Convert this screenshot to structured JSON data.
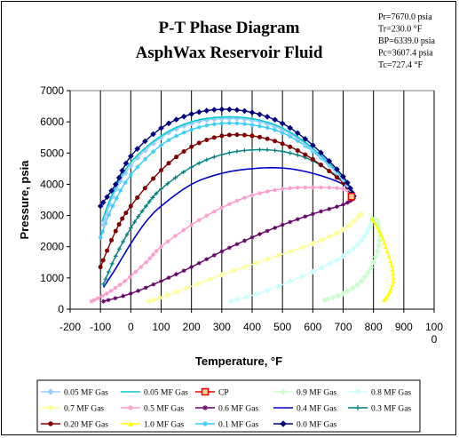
{
  "chart_data": {
    "type": "line",
    "title": "P-T Phase Diagram",
    "subtitle": "AsphWax Reservoir Fluid",
    "xlabel": "Temperature, °F",
    "ylabel": "Pressure, psia",
    "xlim": [
      -200,
      1000
    ],
    "ylim": [
      0,
      7000
    ],
    "x_ticks": [
      -200,
      -100,
      0,
      100,
      200,
      300,
      400,
      500,
      600,
      700,
      800,
      900,
      1000
    ],
    "x_tick_labels": [
      "-200",
      "-100",
      "0",
      "100",
      "200",
      "300",
      "400",
      "500",
      "600",
      "700",
      "800",
      "900",
      "100\n0"
    ],
    "y_ticks": [
      0,
      1000,
      2000,
      3000,
      4000,
      5000,
      6000,
      7000
    ],
    "grid": "vertical",
    "legend_position": "bottom",
    "info_lines": [
      "Pr=7670.0 psia",
      "Tr=230.0 °F",
      "BP=6339.0 psia",
      "Pc=3607.4 psia",
      "Tc=727.4 °F"
    ],
    "series": [
      {
        "name": "0.05 MF Gas",
        "color": "#99ccff",
        "marker": "diamond",
        "points": [
          [
            -90,
            2700
          ],
          [
            -60,
            3600
          ],
          [
            0,
            4600
          ],
          [
            100,
            5500
          ],
          [
            200,
            5950
          ],
          [
            300,
            6100
          ],
          [
            400,
            6050
          ],
          [
            500,
            5750
          ],
          [
            600,
            5100
          ],
          [
            700,
            4150
          ],
          [
            735,
            3620
          ]
        ]
      },
      {
        "name": "0.05 MF Gas",
        "color": "#00cccc",
        "marker": "none",
        "points": [
          [
            -95,
            2800
          ],
          [
            -60,
            3700
          ],
          [
            0,
            4700
          ],
          [
            100,
            5550
          ],
          [
            200,
            6000
          ],
          [
            300,
            6150
          ],
          [
            400,
            6100
          ],
          [
            500,
            5800
          ],
          [
            600,
            5150
          ],
          [
            700,
            4200
          ],
          [
            735,
            3620
          ]
        ]
      },
      {
        "name": "CP",
        "color": "#ff0000",
        "marker": "square",
        "points": [
          [
            727.4,
            3607.4
          ]
        ]
      },
      {
        "name": "0.9 MF Gas",
        "color": "#ccffcc",
        "marker": "diamond",
        "points": [
          [
            640,
            300
          ],
          [
            700,
            500
          ],
          [
            760,
            900
          ],
          [
            800,
            1500
          ],
          [
            820,
            2200
          ],
          [
            815,
            2700
          ],
          [
            805,
            2900
          ]
        ]
      },
      {
        "name": "0.8 MF Gas",
        "color": "#ccffff",
        "marker": "diamond",
        "points": [
          [
            330,
            250
          ],
          [
            450,
            600
          ],
          [
            600,
            1200
          ],
          [
            700,
            1700
          ],
          [
            760,
            2200
          ],
          [
            790,
            2700
          ],
          [
            795,
            2900
          ]
        ]
      },
      {
        "name": "0.7 MF Gas",
        "color": "#ffff99",
        "marker": "diamond",
        "points": [
          [
            60,
            250
          ],
          [
            150,
            550
          ],
          [
            300,
            1100
          ],
          [
            450,
            1600
          ],
          [
            600,
            2100
          ],
          [
            700,
            2550
          ],
          [
            760,
            3050
          ]
        ]
      },
      {
        "name": "0.5 MF Gas",
        "color": "#ff99cc",
        "marker": "star",
        "points": [
          [
            -130,
            250
          ],
          [
            -80,
            500
          ],
          [
            -20,
            900
          ],
          [
            50,
            1500
          ],
          [
            100,
            2000
          ],
          [
            200,
            2700
          ],
          [
            300,
            3250
          ],
          [
            400,
            3650
          ],
          [
            500,
            3850
          ],
          [
            600,
            3900
          ],
          [
            700,
            3850
          ],
          [
            735,
            3620
          ]
        ]
      },
      {
        "name": "0.6 MF Gas",
        "color": "#660066",
        "marker": "star",
        "points": [
          [
            -90,
            250
          ],
          [
            0,
            500
          ],
          [
            100,
            900
          ],
          [
            200,
            1350
          ],
          [
            300,
            1850
          ],
          [
            400,
            2300
          ],
          [
            500,
            2700
          ],
          [
            600,
            3050
          ],
          [
            700,
            3350
          ],
          [
            735,
            3550
          ]
        ]
      },
      {
        "name": "0.4 MF Gas",
        "color": "#0000cc",
        "marker": "none",
        "points": [
          [
            -90,
            700
          ],
          [
            -50,
            1300
          ],
          [
            0,
            2100
          ],
          [
            50,
            2800
          ],
          [
            100,
            3300
          ],
          [
            200,
            4000
          ],
          [
            300,
            4350
          ],
          [
            400,
            4500
          ],
          [
            500,
            4520
          ],
          [
            600,
            4350
          ],
          [
            700,
            4000
          ],
          [
            735,
            3620
          ]
        ]
      },
      {
        "name": "0.3 MF Gas",
        "color": "#008080",
        "marker": "plus",
        "points": [
          [
            -90,
            800
          ],
          [
            -50,
            1700
          ],
          [
            0,
            2600
          ],
          [
            50,
            3300
          ],
          [
            100,
            3850
          ],
          [
            200,
            4550
          ],
          [
            300,
            4950
          ],
          [
            400,
            5100
          ],
          [
            500,
            5050
          ],
          [
            600,
            4750
          ],
          [
            700,
            4100
          ],
          [
            735,
            3620
          ]
        ]
      },
      {
        "name": "0.20 MF Gas",
        "color": "#800000",
        "marker": "circle",
        "points": [
          [
            -100,
            1350
          ],
          [
            -50,
            2500
          ],
          [
            0,
            3300
          ],
          [
            100,
            4450
          ],
          [
            200,
            5200
          ],
          [
            300,
            5550
          ],
          [
            400,
            5550
          ],
          [
            500,
            5300
          ],
          [
            600,
            4800
          ],
          [
            700,
            4050
          ],
          [
            735,
            3620
          ]
        ]
      },
      {
        "name": "1.0 MF Gas",
        "color": "#ffff00",
        "marker": "triangle",
        "points": [
          [
            795,
            2900
          ],
          [
            820,
            2500
          ],
          [
            840,
            2000
          ],
          [
            860,
            1400
          ],
          [
            865,
            900
          ],
          [
            850,
            500
          ],
          [
            835,
            300
          ]
        ]
      },
      {
        "name": "0.1 MF Gas",
        "color": "#33ccff",
        "marker": "star",
        "points": [
          [
            -100,
            2300
          ],
          [
            -60,
            3300
          ],
          [
            0,
            4300
          ],
          [
            100,
            5250
          ],
          [
            200,
            5750
          ],
          [
            300,
            5950
          ],
          [
            400,
            5900
          ],
          [
            500,
            5650
          ],
          [
            600,
            5050
          ],
          [
            700,
            4150
          ],
          [
            735,
            3620
          ]
        ]
      },
      {
        "name": "0.0 MF Gas",
        "color": "#000080",
        "marker": "diamond",
        "points": [
          [
            -100,
            3300
          ],
          [
            -50,
            4000
          ],
          [
            0,
            4900
          ],
          [
            100,
            5800
          ],
          [
            200,
            6250
          ],
          [
            300,
            6400
          ],
          [
            400,
            6300
          ],
          [
            500,
            5950
          ],
          [
            600,
            5250
          ],
          [
            700,
            4250
          ],
          [
            735,
            3620
          ]
        ]
      }
    ]
  }
}
